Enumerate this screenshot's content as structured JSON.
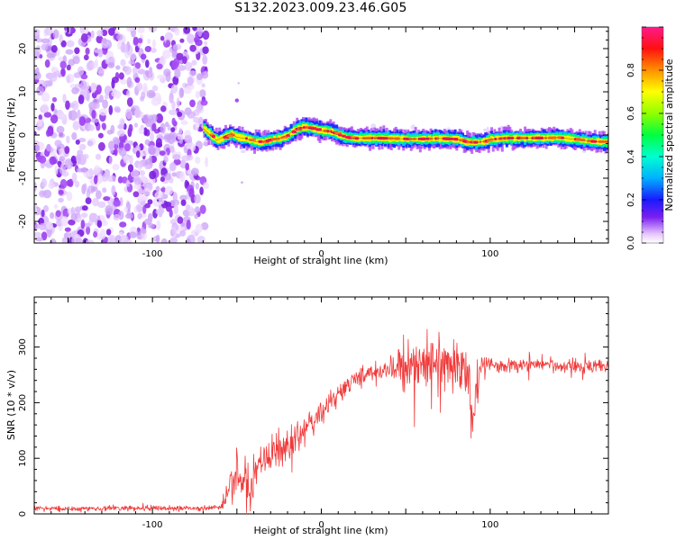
{
  "title": "S132.2023.009.23.46.G05",
  "colors": {
    "snr_line": "#f03a3a",
    "ridge_core": "#ff1a5a",
    "noise": "#8a2be2",
    "background": "#ffffff"
  },
  "chart_data": [
    {
      "type": "heatmap",
      "xlabel": "Height of straight line (km)",
      "ylabel": "Frequency (Hz)",
      "xlim": [
        -170,
        170
      ],
      "ylim": [
        -25,
        25
      ],
      "xticks": [
        -100,
        0,
        100
      ],
      "yticks": [
        -20,
        -10,
        0,
        10,
        20
      ],
      "noise_region_x": [
        -170,
        -70
      ],
      "ridge": {
        "x": [
          -70,
          -66,
          -62,
          -58,
          -54,
          -50,
          -45,
          -40,
          -35,
          -30,
          -25,
          -20,
          -15,
          -10,
          -5,
          0,
          5,
          10,
          15,
          20,
          30,
          40,
          50,
          60,
          70,
          80,
          85,
          90,
          95,
          100,
          110,
          120,
          130,
          140,
          150,
          160,
          170
        ],
        "y": [
          1.5,
          0,
          -1.2,
          -0.5,
          0.3,
          -0.5,
          -0.8,
          -1.5,
          -1.6,
          -1,
          -0.8,
          0,
          1.5,
          1.8,
          1.4,
          1,
          0.8,
          0,
          -0.6,
          -0.8,
          -0.7,
          -0.8,
          -0.9,
          -0.9,
          -0.8,
          -1,
          -1.6,
          -1.7,
          -1.6,
          -1,
          -0.7,
          -0.7,
          -0.7,
          -0.6,
          -1,
          -1.5,
          -1.6
        ]
      },
      "colorbar": {
        "label": "Normalized spectral amplitude",
        "ticks": [
          0.0,
          0.2,
          0.4,
          0.6,
          0.8
        ],
        "tick_labels": [
          "0.0",
          "0.2",
          "0.4",
          "0.6",
          "0.8"
        ],
        "range": [
          0,
          1
        ],
        "colormap": "rainbow"
      }
    },
    {
      "type": "line",
      "xlabel": "Height of straight line (km)",
      "ylabel": "SNR (10 * v/v)",
      "xlim": [
        -170,
        170
      ],
      "ylim": [
        0,
        390
      ],
      "xticks": [
        -100,
        0,
        100
      ],
      "yticks": [
        0,
        100,
        200,
        300
      ],
      "series": [
        {
          "x": [
            -170,
            -150,
            -130,
            -110,
            -90,
            -70,
            -60,
            -57,
            -55,
            -52,
            -50,
            -47,
            -45,
            -42,
            -40,
            -35,
            -30,
            -25,
            -20,
            -15,
            -10,
            -5,
            0,
            5,
            10,
            15,
            20,
            25,
            30,
            35,
            40,
            45,
            50,
            55,
            60,
            65,
            70,
            75,
            80,
            85,
            88,
            90,
            92,
            95,
            100,
            110,
            120,
            130,
            140,
            150,
            160,
            170
          ],
          "y": [
            10,
            10,
            10,
            10,
            10,
            10,
            12,
            20,
            60,
            45,
            95,
            40,
            80,
            30,
            70,
            95,
            105,
            115,
            120,
            135,
            150,
            165,
            180,
            200,
            215,
            230,
            240,
            250,
            255,
            260,
            258,
            262,
            265,
            270,
            268,
            265,
            270,
            262,
            268,
            260,
            240,
            160,
            240,
            265,
            268,
            265,
            268,
            270,
            265,
            268,
            265,
            270
          ],
          "spread": [
            6,
            6,
            6,
            6,
            6,
            6,
            6,
            15,
            40,
            40,
            50,
            40,
            45,
            35,
            40,
            45,
            45,
            40,
            40,
            35,
            30,
            30,
            25,
            25,
            25,
            25,
            20,
            20,
            18,
            20,
            25,
            40,
            55,
            55,
            60,
            60,
            55,
            60,
            60,
            60,
            70,
            110,
            70,
            30,
            15,
            15,
            15,
            15,
            15,
            15,
            15,
            15
          ]
        }
      ]
    }
  ]
}
